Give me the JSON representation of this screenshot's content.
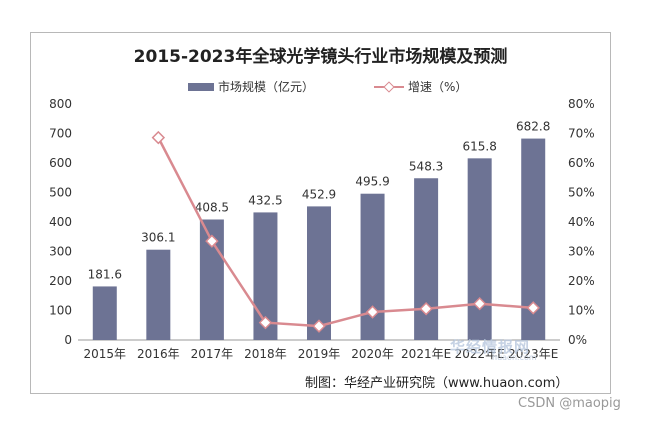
{
  "chart_data": {
    "type": "bar",
    "title": "2015-2023年全球光学镜头行业市场规模及预测",
    "categories": [
      "2015年",
      "2016年",
      "2017年",
      "2018年",
      "2019年",
      "2020年",
      "2021年E",
      "2022年E",
      "2023年E"
    ],
    "series": [
      {
        "name": "市场规模（亿元）",
        "type": "bar",
        "axis": "left",
        "color": "#6d7394",
        "values": [
          181.6,
          306.1,
          408.5,
          432.5,
          452.9,
          495.9,
          548.3,
          615.8,
          682.8
        ],
        "labels": [
          "181.6",
          "306.1",
          "408.5",
          "432.5",
          "452.9",
          "495.9",
          "548.3",
          "615.8",
          "682.8"
        ]
      },
      {
        "name": "增速（%）",
        "type": "line",
        "axis": "right",
        "color": "#d98a90",
        "values": [
          null,
          68.6,
          33.5,
          5.9,
          4.7,
          9.5,
          10.6,
          12.3,
          10.9
        ]
      }
    ],
    "ylim": [
      0,
      800
    ],
    "yticks": [
      "0",
      "100",
      "200",
      "300",
      "400",
      "500",
      "600",
      "700",
      "800"
    ],
    "y2lim": [
      0,
      80
    ],
    "y2ticks": [
      "0%",
      "10%",
      "20%",
      "30%",
      "40%",
      "50%",
      "60%",
      "70%",
      "80%"
    ],
    "legend": "top-center",
    "grid": false
  },
  "source": "制图：华经产业研究院（www.huaon.com）",
  "watermark": "华经情报网",
  "watermark_sub": "huaon.com",
  "footer": "CSDN @maopig"
}
